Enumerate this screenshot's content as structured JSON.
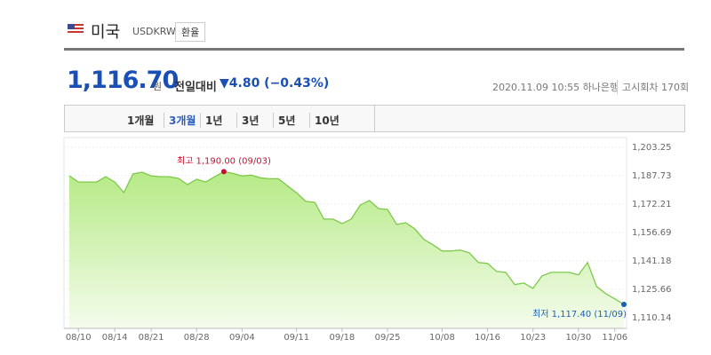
{
  "header": {
    "country": "미국",
    "code": "USDKRW",
    "button": "환율"
  },
  "quote": {
    "price": "1,116.70",
    "unit": "원",
    "change_label": "전일대비",
    "change": "▼4.80 (−0.43%)",
    "info": "2020.11.09 10:55 하나은행",
    "round": "고시회차 170회"
  },
  "tabs": [
    "1개월",
    "3개월",
    "1년",
    "3년",
    "5년",
    "10년"
  ],
  "chart_data": {
    "type": "area",
    "categories": [
      null,
      "08/10",
      null,
      null,
      null,
      "08/14",
      null,
      null,
      null,
      "08/21",
      null,
      null,
      null,
      null,
      "08/28",
      null,
      null,
      null,
      null,
      "09/04",
      null,
      null,
      null,
      null,
      null,
      "09/11",
      null,
      null,
      null,
      null,
      "09/18",
      null,
      null,
      null,
      null,
      "09/25",
      null,
      null,
      null,
      null,
      null,
      "10/08",
      null,
      null,
      null,
      null,
      "10/16",
      null,
      null,
      null,
      null,
      "10/23",
      null,
      null,
      null,
      null,
      "10/30",
      null,
      null,
      null,
      "11/06",
      null
    ],
    "series": [
      {
        "name": "USDKRW",
        "color": "#7cc94a",
        "values": [
          1187.7,
          1184.3,
          1184.3,
          1184.3,
          1187.2,
          1184.3,
          1178.5,
          1188.7,
          1189.7,
          1187.7,
          1187.2,
          1187.2,
          1186.3,
          1182.9,
          1185.8,
          1184.3,
          1187.2,
          1190.0,
          1189.0,
          1187.6,
          1188.1,
          1186.6,
          1186.1,
          1186.1,
          1182.2,
          1178.4,
          1173.7,
          1173.2,
          1164.0,
          1164.0,
          1161.6,
          1164.0,
          1171.7,
          1174.2,
          1169.8,
          1169.3,
          1161.1,
          1162.1,
          1158.7,
          1152.9,
          1150.0,
          1146.6,
          1146.6,
          1147.1,
          1145.6,
          1140.3,
          1139.8,
          1135.4,
          1134.9,
          1128.2,
          1129.1,
          1126.2,
          1133.0,
          1134.9,
          1134.9,
          1134.9,
          1133.5,
          1140.3,
          1127.2,
          1123.3,
          1120.4,
          1117.4
        ]
      }
    ],
    "annotations": [
      {
        "text": "최고 1,190.00 (09/03)",
        "color": "#c8102e"
      },
      {
        "text": "최저 1,117.40 (11/09)",
        "color": "#1a5fb4"
      }
    ],
    "ylim": [
      1104.3,
      1208.6
    ],
    "yticks": [
      {
        "value": 1110.14,
        "label": "1,110.14"
      },
      {
        "value": 1125.66,
        "label": "1,125.66"
      },
      {
        "value": 1141.18,
        "label": "1,141.18"
      },
      {
        "value": 1156.69,
        "label": "1,156.69"
      },
      {
        "value": 1172.21,
        "label": "1,172.21"
      },
      {
        "value": 1187.73,
        "label": "1,187.73"
      },
      {
        "value": 1203.25,
        "label": "1,203.25"
      }
    ],
    "grid": true
  }
}
